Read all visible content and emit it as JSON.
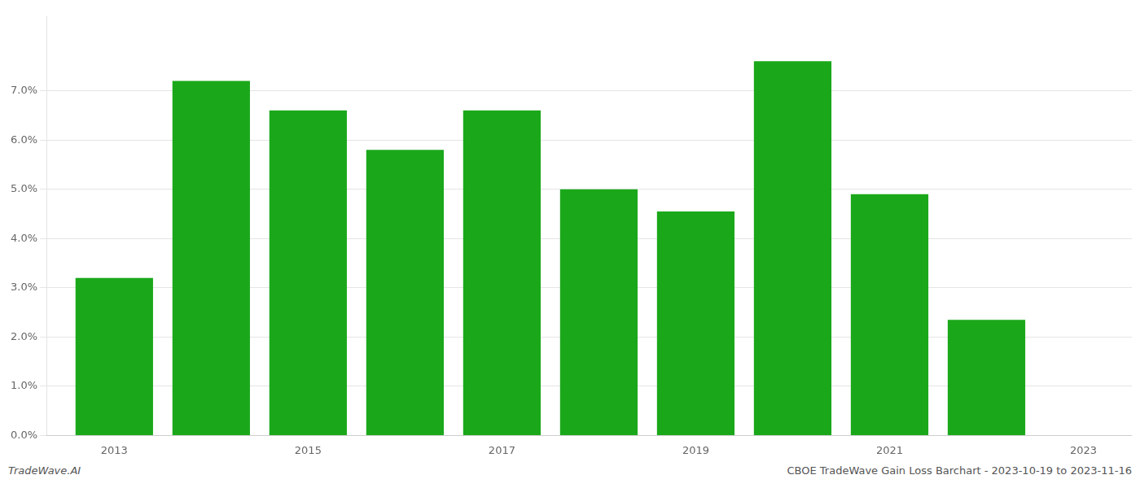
{
  "chart_data": {
    "type": "bar",
    "x": [
      2013,
      2014,
      2015,
      2016,
      2017,
      2018,
      2019,
      2020,
      2021,
      2022
    ],
    "values": [
      0.032,
      0.072,
      0.066,
      0.058,
      0.066,
      0.05,
      0.0455,
      0.076,
      0.049,
      0.0235
    ],
    "color": "#1aa81a",
    "xlim": [
      2012.3,
      2023.5
    ],
    "xticks": [
      2013,
      2015,
      2017,
      2019,
      2021,
      2023
    ],
    "ylim": [
      0,
      0.085
    ],
    "yticks": [
      {
        "value": 0.0,
        "label": "0.0%"
      },
      {
        "value": 0.01,
        "label": "1.0%"
      },
      {
        "value": 0.02,
        "label": "2.0%"
      },
      {
        "value": 0.03,
        "label": "3.0%"
      },
      {
        "value": 0.04,
        "label": "4.0%"
      },
      {
        "value": 0.05,
        "label": "5.0%"
      },
      {
        "value": 0.06,
        "label": "6.0%"
      },
      {
        "value": 0.07,
        "label": "7.0%"
      }
    ],
    "grid": true,
    "annotations": [
      "TradeWave.AI",
      "CBOE TradeWave Gain Loss Barchart - 2023-10-19 to 2023-11-16"
    ]
  }
}
